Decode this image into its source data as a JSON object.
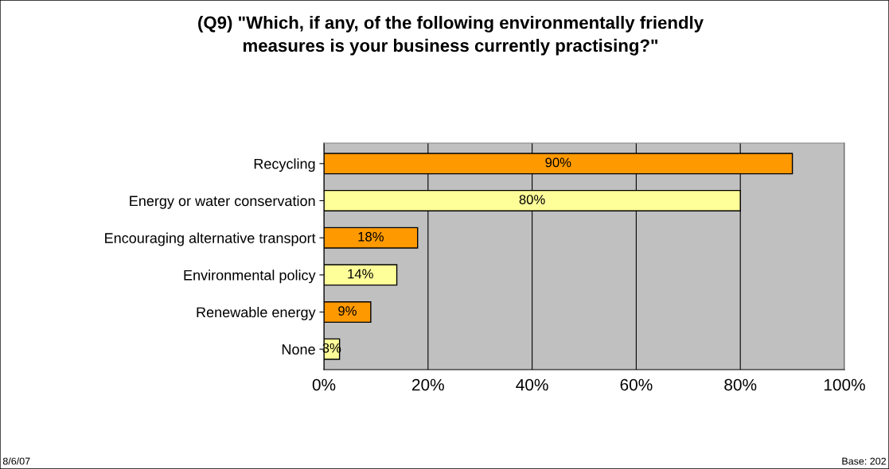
{
  "chart_data": {
    "type": "bar",
    "orientation": "horizontal",
    "title": "(Q9) \"Which, if any, of the following environmentally friendly\nmeasures is your business currently practising?\"",
    "categories": [
      "Recycling",
      "Energy or water conservation",
      "Encouraging alternative transport",
      "Environmental policy",
      "Renewable energy",
      "None"
    ],
    "values": [
      90,
      80,
      18,
      14,
      9,
      3
    ],
    "value_labels": [
      "90%",
      "80%",
      "18%",
      "14%",
      "9%",
      "3%"
    ],
    "colors": [
      "#ff9900",
      "#ffff99",
      "#ff9900",
      "#ffff99",
      "#ff9900",
      "#ffff99"
    ],
    "xlim": [
      0,
      100
    ],
    "xticks": [
      {
        "value": 0,
        "label": "0%"
      },
      {
        "value": 20,
        "label": "20%"
      },
      {
        "value": 40,
        "label": "40%"
      },
      {
        "value": 60,
        "label": "60%"
      },
      {
        "value": 80,
        "label": "80%"
      },
      {
        "value": 100,
        "label": "100%"
      }
    ],
    "grid": "x",
    "annotations": [
      "8/6/07",
      "Base: 202"
    ]
  }
}
